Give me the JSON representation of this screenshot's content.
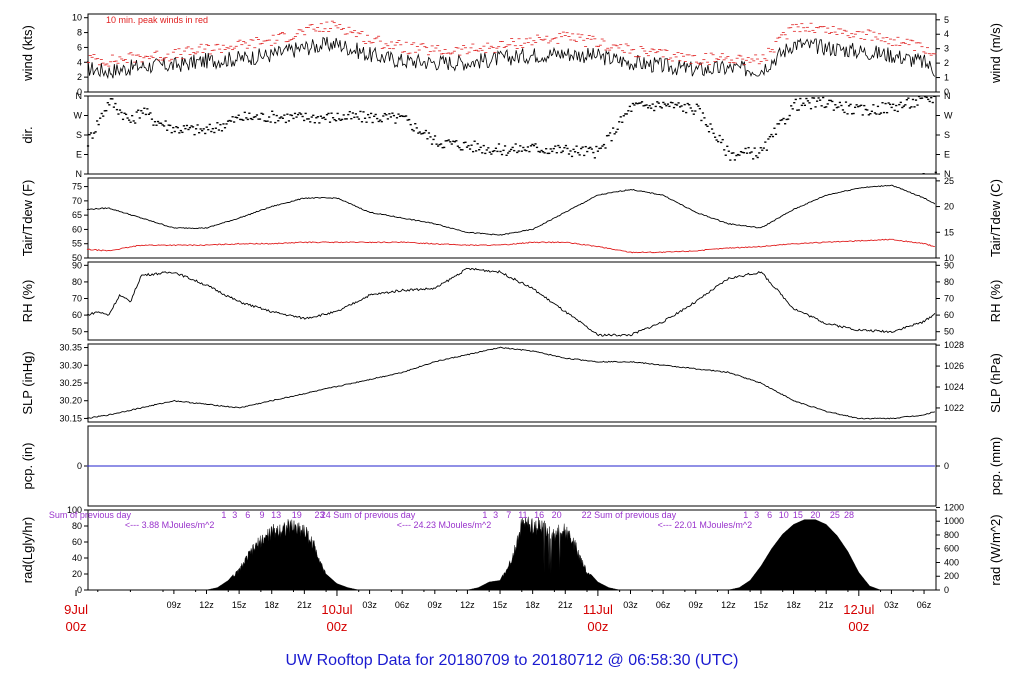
{
  "title": "UW Rooftop Data for 20180709  to  20180712 @ 06:58:30  (UTC)",
  "x_axis": {
    "hour_labels": [
      "09z",
      "12z",
      "15z",
      "18z",
      "21z",
      "03z",
      "06z",
      "09z",
      "12z",
      "15z",
      "18z",
      "21z",
      "03z",
      "06z",
      "09z",
      "12z",
      "15z",
      "18z",
      "21z",
      "03z",
      "06z"
    ],
    "hour_values": [
      9,
      12,
      15,
      18,
      21,
      27,
      30,
      33,
      36,
      39,
      42,
      45,
      51,
      54,
      57,
      60,
      63,
      66,
      69,
      75,
      78
    ],
    "day_labels": [
      {
        "line1": "9Jul",
        "line2": "00z",
        "hour": 0
      },
      {
        "line1": "10Jul",
        "line2": "00z",
        "hour": 24
      },
      {
        "line1": "11Jul",
        "line2": "00z",
        "hour": 48
      },
      {
        "line1": "12Jul",
        "line2": "00z",
        "hour": 72
      }
    ],
    "range_hours": [
      1.1,
      79.1
    ]
  },
  "chart_data": [
    {
      "type": "line",
      "panel": "wind",
      "ylabel_left": "wind (kts)",
      "ylabel_right": "wind (m/s)",
      "ylim": [
        0,
        10.5
      ],
      "left_ticks": [
        "0",
        "2",
        "4",
        "6",
        "8",
        "10"
      ],
      "right_ticks": [
        "0",
        "1",
        "2",
        "3",
        "4",
        "5"
      ],
      "annotation": "10 min. peak winds in red",
      "series": [
        {
          "name": "wind",
          "color": "#000000",
          "x": [
            1,
            3,
            6,
            9,
            12,
            15,
            18,
            21,
            24,
            27,
            30,
            33,
            36,
            39,
            42,
            45,
            48,
            51,
            54,
            57,
            60,
            63,
            66,
            69,
            72,
            75,
            78,
            79
          ],
          "values": [
            3.2,
            2.8,
            3.5,
            3.6,
            4.2,
            4.5,
            5.0,
            6.0,
            6.5,
            5.0,
            4.2,
            4.0,
            4.0,
            4.5,
            5.0,
            5.2,
            4.8,
            4.0,
            3.5,
            3.0,
            3.2,
            3.0,
            6.5,
            6.0,
            5.5,
            5.0,
            4.0,
            3.0
          ]
        },
        {
          "name": "10 min. peak winds",
          "color": "#e02020",
          "x": [
            1,
            3,
            6,
            9,
            12,
            15,
            18,
            21,
            24,
            27,
            30,
            33,
            36,
            39,
            42,
            45,
            48,
            51,
            54,
            57,
            60,
            63,
            66,
            69,
            72,
            75,
            78,
            79
          ],
          "values": [
            4.5,
            4.2,
            4.8,
            5.0,
            5.8,
            6.3,
            7.0,
            8.2,
            9.0,
            7.0,
            6.0,
            5.5,
            5.6,
            6.2,
            7.0,
            7.3,
            6.6,
            5.5,
            5.0,
            4.4,
            4.6,
            4.3,
            9.0,
            8.4,
            7.8,
            7.0,
            5.6,
            4.3
          ]
        }
      ]
    },
    {
      "type": "scatter",
      "panel": "direction",
      "ylabel_left": "dir.",
      "ylim": [
        0,
        360
      ],
      "tick_labels": [
        "N",
        "E",
        "S",
        "W",
        "N"
      ],
      "tick_values": [
        0,
        90,
        180,
        270,
        360
      ],
      "series": [
        {
          "name": "direction",
          "color": "#000000",
          "x": [
            1,
            3,
            5,
            6,
            7,
            9,
            12,
            15,
            18,
            21,
            24,
            27,
            30,
            33,
            36,
            39,
            42,
            45,
            48,
            51,
            54,
            57,
            60,
            63,
            66,
            69,
            72,
            75,
            78,
            79
          ],
          "values": [
            150,
            340,
            240,
            300,
            250,
            210,
            200,
            260,
            265,
            260,
            262,
            262,
            255,
            150,
            130,
            110,
            120,
            110,
            100,
            310,
            320,
            300,
            90,
            100,
            320,
            330,
            290,
            310,
            340,
            355
          ]
        }
      ]
    },
    {
      "type": "line",
      "panel": "temperature",
      "ylabel_left": "Tair/Tdew (F)",
      "ylabel_right": "Tair/Tdew (C)",
      "ylim": [
        50,
        78
      ],
      "left_ticks": [
        "50",
        "55",
        "60",
        "65",
        "70",
        "75"
      ],
      "right_ticks": [
        "10",
        "15",
        "20",
        "25"
      ],
      "series": [
        {
          "name": "Tair",
          "color": "#000000",
          "x": [
            1,
            3,
            6,
            9,
            12,
            15,
            18,
            21,
            24,
            27,
            30,
            33,
            36,
            39,
            42,
            45,
            48,
            51,
            54,
            57,
            60,
            63,
            66,
            69,
            72,
            75,
            78,
            79
          ],
          "values": [
            67,
            67.5,
            64,
            60.5,
            60.5,
            64,
            68,
            71,
            71,
            66,
            64,
            62,
            59,
            58,
            60,
            66,
            72,
            74,
            72,
            66,
            62,
            60.5,
            67,
            72,
            74.5,
            75.5,
            71,
            69
          ]
        },
        {
          "name": "Tdew",
          "color": "#e02020",
          "x": [
            1,
            3,
            6,
            9,
            12,
            15,
            18,
            21,
            24,
            27,
            30,
            33,
            36,
            39,
            42,
            45,
            48,
            51,
            54,
            57,
            60,
            63,
            66,
            69,
            72,
            75,
            78,
            79
          ],
          "values": [
            53,
            52.5,
            54.5,
            54.5,
            54.5,
            55,
            55,
            55.5,
            55.5,
            55.5,
            55.5,
            55,
            54.5,
            54.5,
            55.5,
            55.5,
            54,
            52,
            52,
            52.5,
            53.5,
            54,
            55,
            55.5,
            56,
            56.5,
            55,
            54
          ]
        }
      ]
    },
    {
      "type": "line",
      "panel": "rh",
      "ylabel_left": "RH (%)",
      "ylabel_right": "RH (%)",
      "ylim": [
        45,
        92
      ],
      "left_ticks": [
        "50",
        "60",
        "70",
        "80",
        "90"
      ],
      "right_ticks": [
        "50",
        "60",
        "70",
        "80",
        "90"
      ],
      "series": [
        {
          "name": "RH",
          "color": "#000000",
          "x": [
            1,
            2,
            3,
            4,
            5,
            6,
            9,
            12,
            15,
            18,
            21,
            24,
            27,
            30,
            33,
            36,
            39,
            42,
            45,
            48,
            51,
            54,
            57,
            60,
            63,
            66,
            69,
            72,
            75,
            78,
            79
          ],
          "values": [
            60,
            62,
            60,
            72,
            68,
            84,
            86,
            78,
            68,
            62,
            58,
            62,
            72,
            75,
            76,
            88,
            86,
            76,
            62,
            48,
            48,
            56,
            68,
            82,
            86,
            64,
            55,
            51,
            50,
            56,
            61
          ]
        }
      ]
    },
    {
      "type": "line",
      "panel": "pressure",
      "ylabel_left": "SLP (inHg)",
      "ylabel_right": "SLP (hPa)",
      "ylim": [
        30.14,
        30.36
      ],
      "left_ticks": [
        "30.15",
        "30.20",
        "30.25",
        "30.30",
        "30.35"
      ],
      "right_ticks": [
        "1022",
        "1024",
        "1026",
        "1028"
      ],
      "series": [
        {
          "name": "SLP",
          "color": "#000000",
          "x": [
            1,
            3,
            6,
            9,
            12,
            15,
            18,
            21,
            24,
            27,
            30,
            33,
            36,
            39,
            42,
            45,
            48,
            51,
            54,
            57,
            60,
            63,
            66,
            69,
            72,
            75,
            78,
            79
          ],
          "values": [
            30.15,
            30.16,
            30.18,
            30.2,
            30.19,
            30.18,
            30.2,
            30.22,
            30.24,
            30.26,
            30.28,
            30.31,
            30.33,
            30.35,
            30.34,
            30.32,
            30.31,
            30.31,
            30.3,
            30.29,
            30.28,
            30.25,
            30.2,
            30.17,
            30.15,
            30.15,
            30.16,
            30.17
          ]
        }
      ]
    },
    {
      "type": "line",
      "panel": "precip",
      "ylabel_left": "pcp. (in)",
      "ylabel_right": "pcp. (mm)",
      "ylim": [
        -0.5,
        0.5
      ],
      "left_ticks": [
        "0"
      ],
      "right_ticks": [
        "0"
      ],
      "series": [
        {
          "name": "precip",
          "color": "#2222cc",
          "x": [
            1,
            79
          ],
          "values": [
            0,
            0
          ]
        }
      ]
    },
    {
      "type": "area",
      "panel": "radiation",
      "ylabel_left": "rad(Lgly/hr)",
      "ylabel_right": "rad (W/m^2)",
      "ylim": [
        0,
        100
      ],
      "left_ticks": [
        "0",
        "20",
        "40",
        "60",
        "80",
        "100"
      ],
      "right_ticks": [
        "0",
        "200",
        "400",
        "600",
        "800",
        "1000",
        "1200"
      ],
      "annotations": [
        {
          "text": "Sum of previous day",
          "hour": 1
        },
        {
          "text": "<--- 3.88 MJoules/m^2",
          "hour": 1
        },
        {
          "text": "24 Sum of previous day",
          "hour": 26
        },
        {
          "text": "<--- 24.23 MJoules/m^2",
          "hour": 26
        },
        {
          "text": "22 Sum of previous day",
          "hour": 50
        },
        {
          "text": "<--- 22.01 MJoules/m^2",
          "hour": 50
        }
      ],
      "hour_markers": [
        {
          "label": "1",
          "hour": 13.6
        },
        {
          "label": "3",
          "hour": 14.6
        },
        {
          "label": "6",
          "hour": 15.8
        },
        {
          "label": "9",
          "hour": 17.1
        },
        {
          "label": "13",
          "hour": 18.4
        },
        {
          "label": "19",
          "hour": 20.3
        },
        {
          "label": "23",
          "hour": 22.4
        },
        {
          "label": "1",
          "hour": 37.6
        },
        {
          "label": "3",
          "hour": 38.6
        },
        {
          "label": "7",
          "hour": 39.8
        },
        {
          "label": "11",
          "hour": 41.1
        },
        {
          "label": "16",
          "hour": 42.6
        },
        {
          "label": "20",
          "hour": 44.2
        },
        {
          "label": "1",
          "hour": 61.6
        },
        {
          "label": "3",
          "hour": 62.6
        },
        {
          "label": "6",
          "hour": 63.8
        },
        {
          "label": "10",
          "hour": 65.1
        },
        {
          "label": "15",
          "hour": 66.4
        },
        {
          "label": "20",
          "hour": 68.0
        },
        {
          "label": "25",
          "hour": 69.8
        },
        {
          "label": "28",
          "hour": 71.1
        }
      ],
      "series": [
        {
          "name": "radiation",
          "color": "#000000",
          "x": [
            12,
            13,
            14,
            15,
            16,
            17,
            18,
            19,
            20,
            21,
            22,
            23,
            24,
            25,
            26,
            36,
            37,
            38,
            39,
            40,
            41,
            42,
            43,
            44,
            45,
            46,
            47,
            48,
            49,
            50,
            60,
            61,
            62,
            63,
            64,
            65,
            66,
            67,
            68,
            69,
            70,
            71,
            72,
            73,
            74
          ],
          "values": [
            0,
            3,
            12,
            28,
            52,
            70,
            82,
            88,
            90,
            85,
            60,
            20,
            8,
            3,
            0,
            0,
            3,
            10,
            12,
            40,
            95,
            90,
            92,
            80,
            85,
            60,
            25,
            10,
            3,
            0,
            0,
            3,
            12,
            30,
            52,
            70,
            82,
            88,
            88,
            82,
            68,
            48,
            22,
            5,
            0
          ]
        }
      ]
    }
  ]
}
